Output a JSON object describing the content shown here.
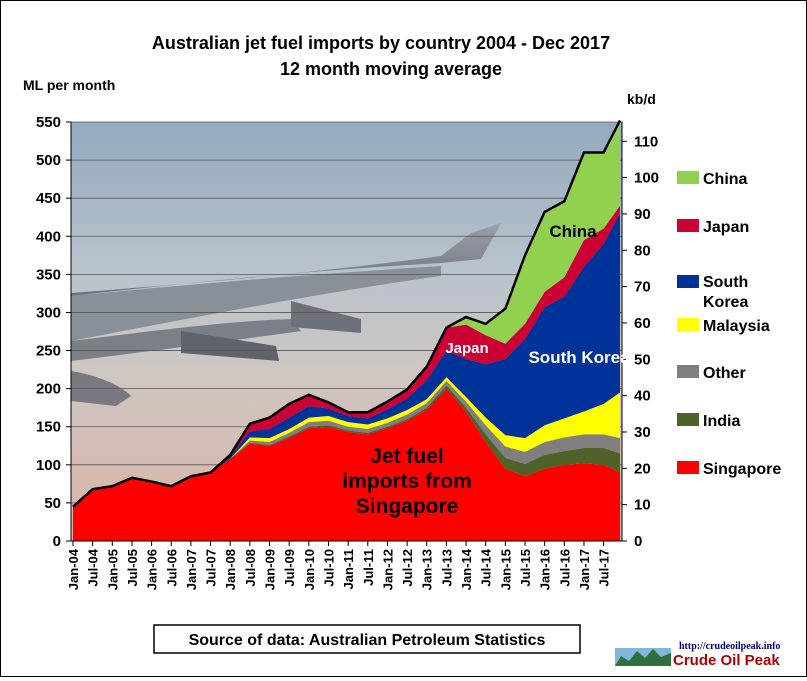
{
  "chart_data": {
    "type": "area",
    "title": "Australian  jet fuel imports  by country  2004 - Dec 2017",
    "subtitle": "12 month moving average",
    "ylabel_left": "ML per month",
    "ylabel_right": "kb/d",
    "ylim_left": [
      0,
      550
    ],
    "ylim_right": [
      0,
      115.3
    ],
    "yticks_left": [
      0,
      50,
      100,
      150,
      200,
      250,
      300,
      350,
      400,
      450,
      500,
      550
    ],
    "yticks_right": [
      0,
      10,
      20,
      30,
      40,
      50,
      60,
      70,
      80,
      90,
      100,
      110
    ],
    "x_tick_labels": [
      "Jan-04",
      "Jul-04",
      "Jan-05",
      "Jul-05",
      "Jan-06",
      "Jul-06",
      "Jan-07",
      "Jul-07",
      "Jan-08",
      "Jul-08",
      "Jan-09",
      "Jul-09",
      "Jan-10",
      "Jul-10",
      "Jan-11",
      "Jul-11",
      "Jan-12",
      "Jul-12",
      "Jan-13",
      "Jul-13",
      "Jan-14",
      "Jul-14",
      "Jan-15",
      "Jul-15",
      "Jan-16",
      "Jul-16",
      "Jan-17",
      "Jul-17"
    ],
    "stack_order": [
      "Singapore",
      "India",
      "Other",
      "Malaysia",
      "South Korea",
      "Japan",
      "China"
    ],
    "x": [
      "2004-01",
      "2004-07",
      "2005-01",
      "2005-07",
      "2006-01",
      "2006-07",
      "2007-01",
      "2007-07",
      "2008-01",
      "2008-07",
      "2009-01",
      "2009-07",
      "2010-01",
      "2010-07",
      "2011-01",
      "2011-07",
      "2012-01",
      "2012-07",
      "2013-01",
      "2013-07",
      "2014-01",
      "2014-07",
      "2015-01",
      "2015-07",
      "2016-01",
      "2016-07",
      "2017-01",
      "2017-07",
      "2017-12"
    ],
    "series": [
      {
        "name": "Singapore",
        "color": "#ff0000",
        "values": [
          45,
          68,
          72,
          83,
          78,
          72,
          85,
          90,
          108,
          128,
          125,
          135,
          148,
          150,
          143,
          140,
          148,
          158,
          172,
          200,
          170,
          130,
          95,
          85,
          95,
          100,
          102,
          100,
          90
        ]
      },
      {
        "name": "India",
        "color": "#4f6228",
        "values": [
          0,
          0,
          0,
          0,
          0,
          0,
          0,
          0,
          0,
          1,
          1,
          2,
          2,
          2,
          2,
          2,
          2,
          2,
          3,
          4,
          5,
          10,
          14,
          16,
          18,
          18,
          20,
          22,
          25
        ]
      },
      {
        "name": "Other",
        "color": "#7f7f7f",
        "values": [
          0,
          0,
          0,
          0,
          0,
          0,
          0,
          0,
          0,
          3,
          4,
          5,
          6,
          6,
          5,
          5,
          5,
          6,
          6,
          6,
          8,
          12,
          15,
          16,
          17,
          18,
          18,
          18,
          20
        ]
      },
      {
        "name": "Malaysia",
        "color": "#ffff00",
        "values": [
          0,
          0,
          0,
          0,
          0,
          0,
          0,
          0,
          0,
          4,
          5,
          5,
          6,
          6,
          6,
          6,
          6,
          6,
          5,
          5,
          6,
          10,
          15,
          18,
          22,
          25,
          30,
          40,
          60
        ]
      },
      {
        "name": "South Korea",
        "color": "#003399",
        "values": [
          0,
          0,
          0,
          0,
          0,
          0,
          0,
          0,
          3,
          8,
          12,
          15,
          15,
          10,
          8,
          8,
          12,
          15,
          25,
          35,
          50,
          70,
          100,
          130,
          155,
          160,
          190,
          210,
          235
        ]
      },
      {
        "name": "Japan",
        "color": "#cc0033",
        "values": [
          0,
          0,
          0,
          0,
          0,
          0,
          0,
          0,
          2,
          10,
          15,
          18,
          15,
          8,
          5,
          8,
          10,
          12,
          18,
          30,
          45,
          38,
          20,
          20,
          20,
          25,
          35,
          20,
          10
        ]
      },
      {
        "name": "China",
        "color": "#92d050",
        "values": [
          0,
          0,
          0,
          0,
          0,
          0,
          0,
          0,
          0,
          0,
          0,
          0,
          0,
          0,
          0,
          0,
          0,
          0,
          0,
          0,
          10,
          15,
          46,
          90,
          105,
          100,
          115,
          100,
          112
        ]
      }
    ],
    "annotations": {
      "china": "China",
      "japan": "Japan",
      "south_korea": "South Korea",
      "singapore_line1": "Jet fuel",
      "singapore_line2": "imports from",
      "singapore_line3": "Singapore"
    },
    "legend_placement": "right",
    "grid": true,
    "background": "photo of airplane wing over sky"
  },
  "legend": [
    {
      "label": "China",
      "color": "#92d050"
    },
    {
      "label": "Japan",
      "color": "#cc0033"
    },
    {
      "label": "South Korea",
      "color": "#003399"
    },
    {
      "label": "Malaysia",
      "color": "#ffff00"
    },
    {
      "label": "Other",
      "color": "#7f7f7f"
    },
    {
      "label": "India",
      "color": "#4f6228"
    },
    {
      "label": "Singapore",
      "color": "#ff0000"
    }
  ],
  "source": "Source of data: Australian Petroleum Statistics",
  "logo": {
    "url": "http://crudeoilpeak.info",
    "name": "Crude Oil Peak"
  }
}
